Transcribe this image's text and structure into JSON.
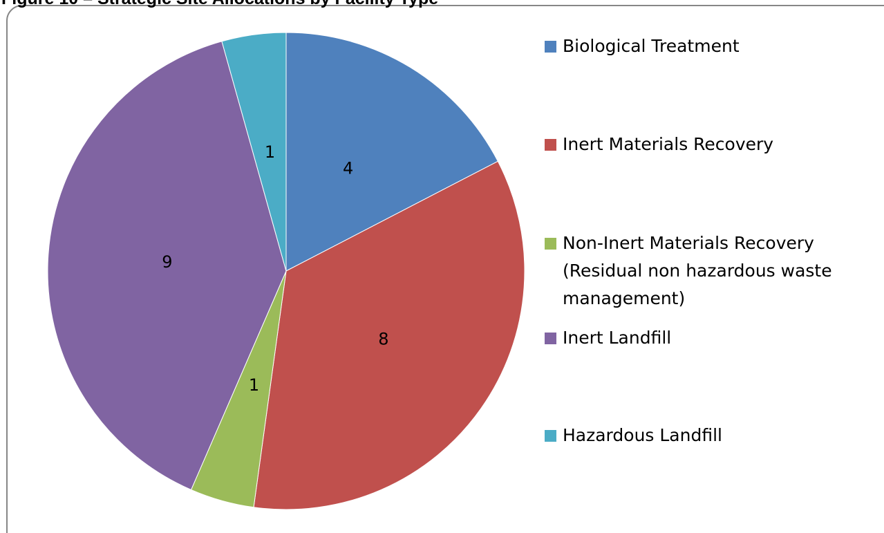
{
  "chart_data": {
    "type": "pie",
    "title": "Figure 10 – Strategic Site Allocations by Facility Type",
    "categories": [
      "Biological Treatment",
      "Inert Materials Recovery",
      "Non-Inert Materials Recovery (Residual non hazardous waste management)",
      "Inert Landfill",
      "Hazardous Landfill"
    ],
    "values": [
      4,
      8,
      1,
      9,
      1
    ],
    "colors": [
      "#4f81bd",
      "#c0504d",
      "#9bbb59",
      "#8064a2",
      "#4bacc6"
    ],
    "legend": "right"
  }
}
